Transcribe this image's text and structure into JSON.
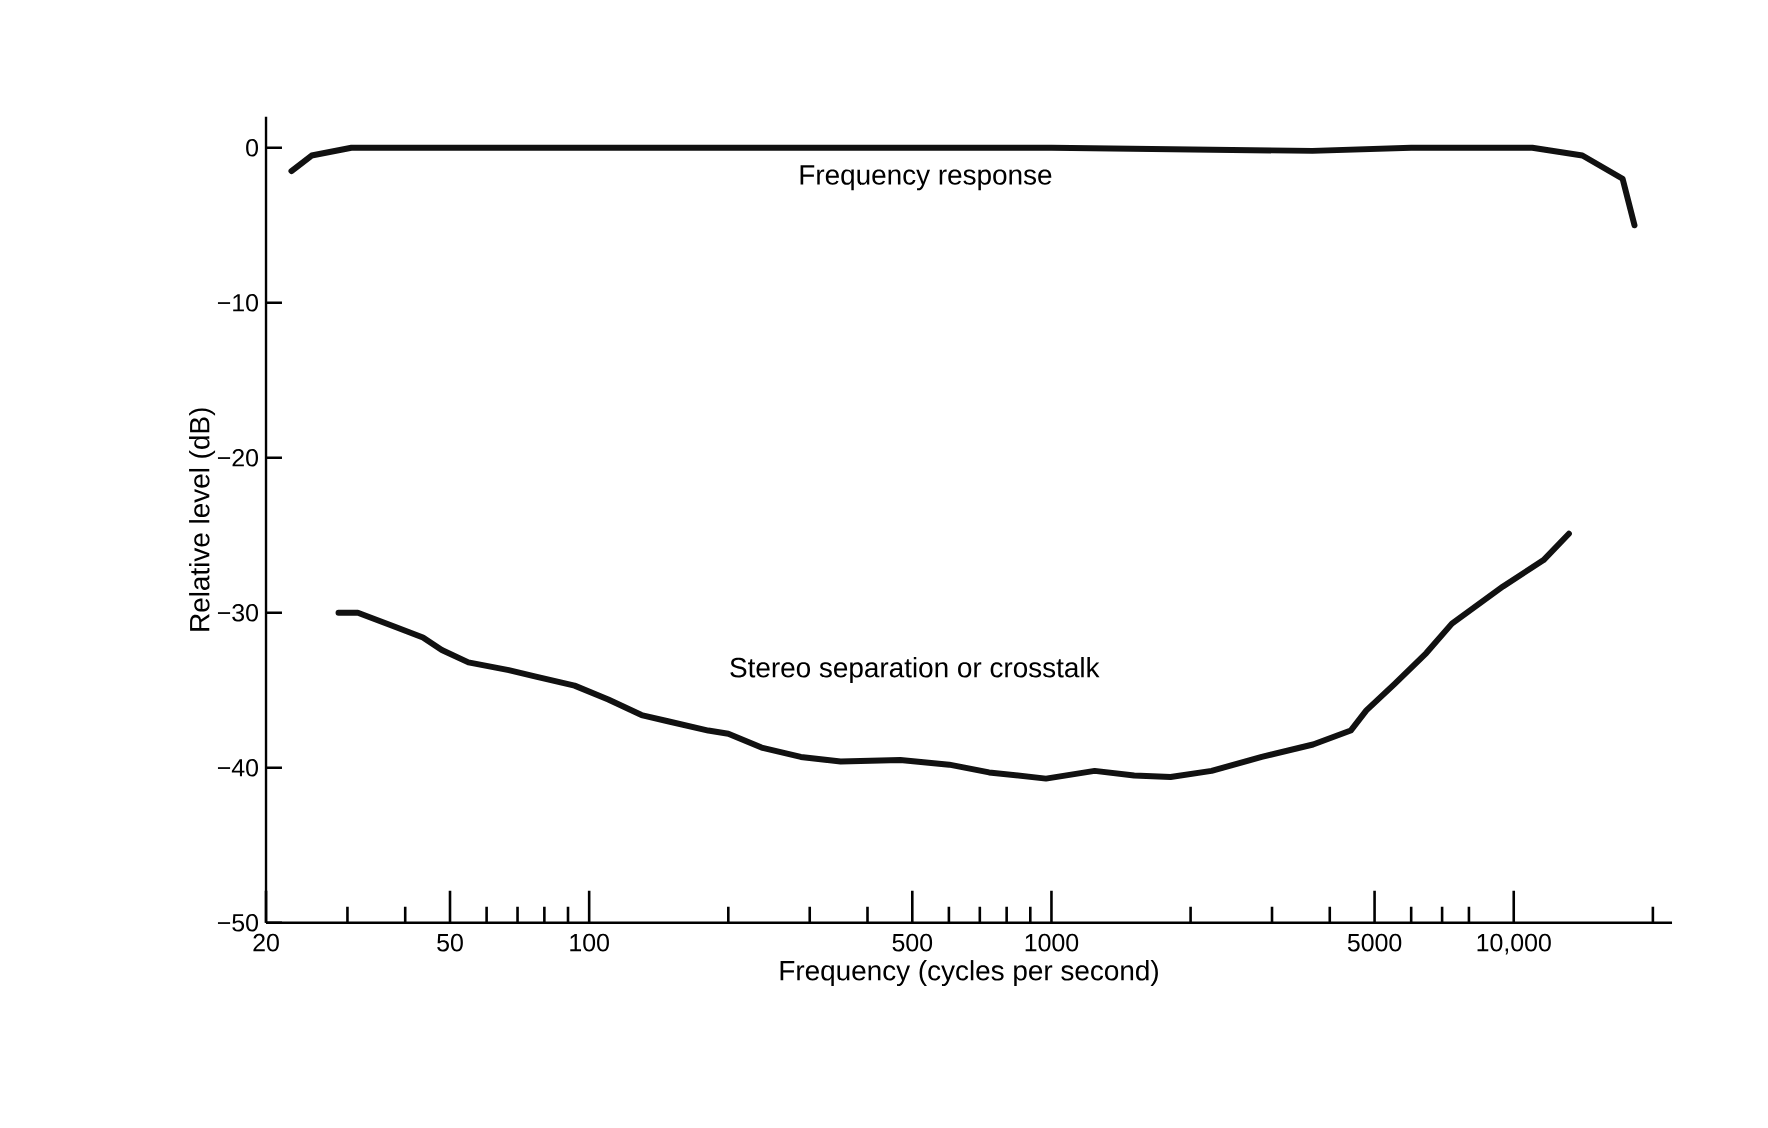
{
  "chart_data": {
    "type": "line",
    "xlabel": "Frequency (cycles per second)",
    "ylabel": "Relative level (dB)",
    "log": "x",
    "xlim": [
      20,
      22000
    ],
    "ylim": [
      -50,
      2
    ],
    "xticks": [
      20,
      50,
      100,
      500,
      1000,
      5000,
      {
        "value": 10000,
        "label": "10,000"
      },
      {
        "value": 30,
        "label": null
      },
      {
        "value": 40,
        "label": null
      },
      {
        "value": 60,
        "label": null
      },
      {
        "value": 70,
        "label": null
      },
      {
        "value": 80,
        "label": null
      },
      {
        "value": 90,
        "label": null
      },
      {
        "value": 200,
        "label": null
      },
      {
        "value": 300,
        "label": null
      },
      {
        "value": 400,
        "label": null
      },
      {
        "value": 600,
        "label": null
      },
      {
        "value": 700,
        "label": null
      },
      {
        "value": 800,
        "label": null
      },
      {
        "value": 900,
        "label": null
      },
      {
        "value": 2000,
        "label": null
      },
      {
        "value": 3000,
        "label": null
      },
      {
        "value": 4000,
        "label": null
      },
      {
        "value": 6000,
        "label": null
      },
      {
        "value": 7000,
        "label": null
      },
      {
        "value": 8000,
        "label": null
      },
      {
        "value": 20000,
        "label": null
      }
    ],
    "yticks": [
      {
        "value": -50,
        "label": "−50"
      },
      {
        "value": -40,
        "label": "−40"
      },
      {
        "value": -30,
        "label": "−30"
      },
      {
        "value": -20,
        "label": "−20"
      },
      {
        "value": -10,
        "label": "−10"
      },
      0
    ],
    "line_style": "solid",
    "series": [
      {
        "name": "Frequency response",
        "color": "#111111",
        "x": [
          22.7,
          25.1,
          30.6,
          100,
          1000,
          3670,
          6000,
          10970,
          14080,
          17200,
          18250
        ],
        "values": [
          -1.5,
          -0.5,
          0,
          0,
          0,
          -0.2,
          0,
          0,
          -0.5,
          -2,
          -5
        ]
      },
      {
        "name": "Stereo separation or crosstalk",
        "color": "#111111",
        "x": [
          28.7,
          31.6,
          38,
          43.7,
          48,
          54.8,
          67,
          76.3,
          93,
          110,
          129.8,
          148,
          181,
          200,
          236,
          287,
          350,
          471,
          601,
          733,
          973,
          1240,
          1510,
          1810,
          2220,
          2850,
          3680,
          4440,
          4800,
          5520,
          6470,
          7350,
          9480,
          11600,
          13160
        ],
        "values": [
          -30,
          -30,
          -30.9,
          -31.6,
          -32.4,
          -33.2,
          -33.7,
          -34.1,
          -34.7,
          -35.6,
          -36.6,
          -37,
          -37.6,
          -37.8,
          -38.7,
          -39.3,
          -39.6,
          -39.5,
          -39.8,
          -40.3,
          -40.7,
          -40.2,
          -40.5,
          -40.6,
          -40.2,
          -39.3,
          -38.5,
          -37.6,
          -36.3,
          -34.6,
          -32.6,
          -30.7,
          -28.3,
          -26.6,
          -24.9
        ]
      }
    ]
  }
}
